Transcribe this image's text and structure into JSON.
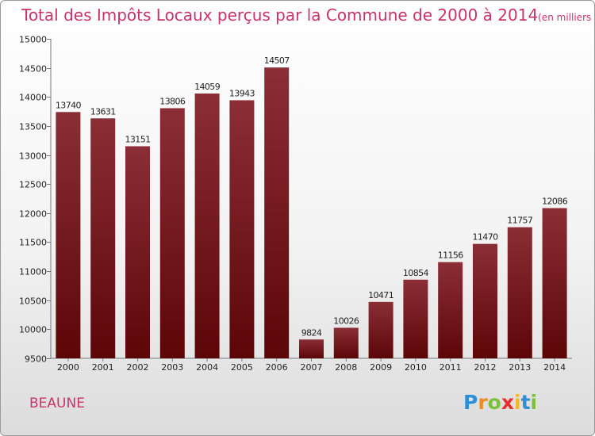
{
  "chart_data": {
    "type": "bar",
    "title": "Total des Impôts Locaux perçus par la Commune de 2000 à 2014",
    "subtitle": "(en milliers d'€)",
    "xlabel": "",
    "ylabel": "",
    "categories": [
      "2000",
      "2001",
      "2002",
      "2003",
      "2004",
      "2005",
      "2006",
      "2007",
      "2008",
      "2009",
      "2010",
      "2011",
      "2012",
      "2013",
      "2014"
    ],
    "values": [
      13740,
      13631,
      13151,
      13806,
      14059,
      13943,
      14507,
      9824,
      10026,
      10471,
      10854,
      11156,
      11470,
      11757,
      12086
    ],
    "ylim": [
      9500,
      15000
    ],
    "yticks": [
      9500,
      10000,
      10500,
      11000,
      11500,
      12000,
      12500,
      13000,
      13500,
      14000,
      14500,
      15000
    ],
    "grid": false,
    "bar_color_light": "#8b2e36",
    "bar_color_dark": "#5c0608"
  },
  "commune": "BEAUNE",
  "brand": {
    "letters": [
      "P",
      "r",
      "o",
      "x",
      "i",
      "t",
      "i"
    ],
    "colors": [
      "#2f8fd6",
      "#f08a24",
      "#7bbf3a",
      "#e8312f",
      "#f5b823",
      "#2f8fd6",
      "#7bbf3a"
    ]
  }
}
